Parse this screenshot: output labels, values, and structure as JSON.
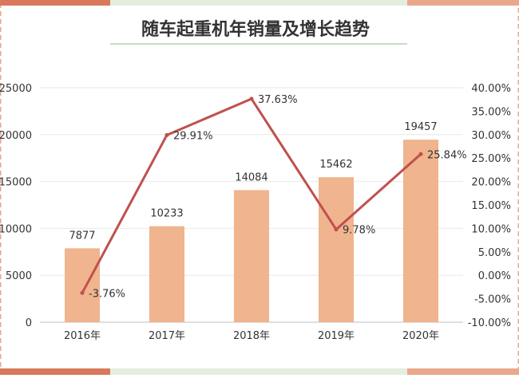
{
  "chart_data": {
    "type": "bar",
    "title": "随车起重机年销量及增长趋势",
    "categories": [
      "2016年",
      "2017年",
      "2018年",
      "2019年",
      "2020年"
    ],
    "series": [
      {
        "name": "",
        "type": "bar",
        "axis": "left",
        "color": "#F0B48E",
        "values": [
          7877,
          10233,
          14084,
          15462,
          19457
        ]
      },
      {
        "name": "",
        "type": "line",
        "axis": "right",
        "color": "#C0504D",
        "values": [
          -3.76,
          29.91,
          37.63,
          9.78,
          25.84
        ]
      }
    ],
    "data_labels": {
      "bars": [
        "7877",
        "10233",
        "14084",
        "15462",
        "19457"
      ],
      "line": [
        "-3.76%",
        "29.91%",
        "37.63%",
        "9.78%",
        "25.84%"
      ]
    },
    "y_left": {
      "lim": [
        0,
        25000
      ],
      "ticks": [
        0,
        5000,
        10000,
        15000,
        20000,
        25000
      ],
      "tick_labels": [
        "0",
        "5000",
        "10000",
        "15000",
        "20000",
        "25000"
      ]
    },
    "y_right": {
      "lim": [
        -10,
        40
      ],
      "ticks": [
        -10,
        -5,
        0,
        5,
        10,
        15,
        20,
        25,
        30,
        35,
        40
      ],
      "tick_labels": [
        "-10.00%",
        "-5.00%",
        "0.00%",
        "5.00%",
        "10.00%",
        "15.00%",
        "20.00%",
        "25.00%",
        "30.00%",
        "35.00%",
        "40.00%"
      ]
    },
    "grid": true,
    "legend": "none"
  },
  "theme": {
    "frame_accent": "#E9A88A",
    "frame_accent_dark": "#D9785A",
    "frame_soft": "#E4EEDF",
    "title_color": "#333333",
    "axis_text": "#333333",
    "gridline": "#E8E8E8",
    "title_rule": "#C9DBC3"
  }
}
